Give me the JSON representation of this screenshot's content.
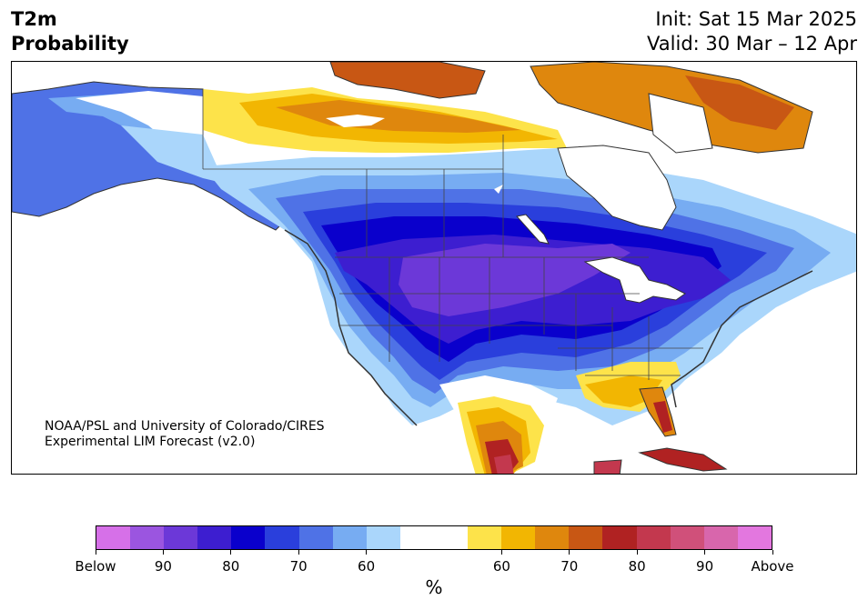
{
  "header": {
    "title_line1": "T2m",
    "title_line2": "Probability",
    "init": "Init: Sat 15 Mar 2025",
    "valid": "Valid: 30 Mar – 12 Apr"
  },
  "credit": {
    "line1": "NOAA/PSL and University of Colorado/CIRES",
    "line2": "Experimental LIM Forecast (v2.0)"
  },
  "colorbar": {
    "unit": "%",
    "colors": [
      "#d670e8",
      "#9b55e0",
      "#6c38d8",
      "#3d1ed0",
      "#0a00cc",
      "#2a3fdc",
      "#4f72e6",
      "#77acf2",
      "#aad6fb",
      "#ffffff",
      "#ffffff",
      "#fde34a",
      "#f2b602",
      "#df870d",
      "#c85714",
      "#b02222",
      "#c3384e",
      "#d0507a",
      "#d866ac",
      "#e377df"
    ],
    "ticks": [
      "Below",
      "90",
      "80",
      "70",
      "60",
      "60",
      "70",
      "80",
      "90",
      "Above"
    ],
    "tick_positions": [
      0,
      2,
      4,
      6,
      8,
      12,
      14,
      16,
      18,
      20
    ]
  },
  "map": {
    "colors": {
      "blue_light": "#aad6fb",
      "blue_mid": "#77acf2",
      "blue_a": "#4f72e6",
      "blue_b": "#2a3fdc",
      "blue_core": "#0a00cc",
      "blue_deep": "#3d1ed0",
      "purple": "#6c38d8",
      "yellow": "#fde34a",
      "gold": "#f2b602",
      "orange": "#df870d",
      "burnt": "#c85714",
      "red": "#b02222",
      "crimson": "#c3384e",
      "coast": "#333333",
      "border": "#444444"
    }
  }
}
